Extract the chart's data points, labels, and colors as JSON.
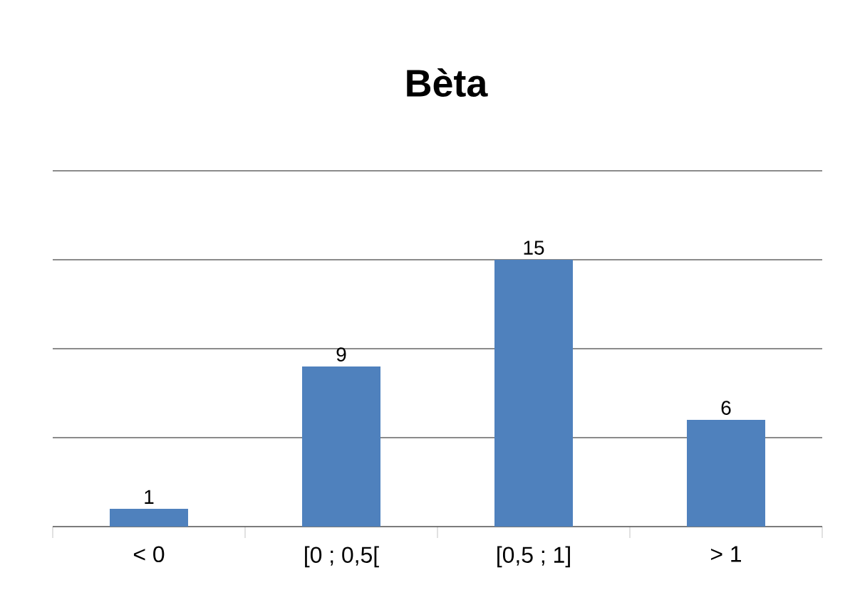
{
  "chart_data": {
    "type": "bar",
    "title": "Bèta",
    "categories": [
      "< 0",
      "[0 ; 0,5[",
      "[0,5 ; 1]",
      "> 1"
    ],
    "values": [
      1,
      9,
      15,
      6
    ],
    "color": "#4f81bd",
    "ylim": [
      0,
      20
    ],
    "yticks": [
      {
        "value": 0,
        "label": null
      },
      {
        "value": 5,
        "label": null
      },
      {
        "value": 10,
        "label": null
      },
      {
        "value": 15,
        "label": null
      },
      {
        "value": 20,
        "label": null
      }
    ],
    "tick_labels": "x",
    "grid": "y",
    "data_labels": true
  }
}
